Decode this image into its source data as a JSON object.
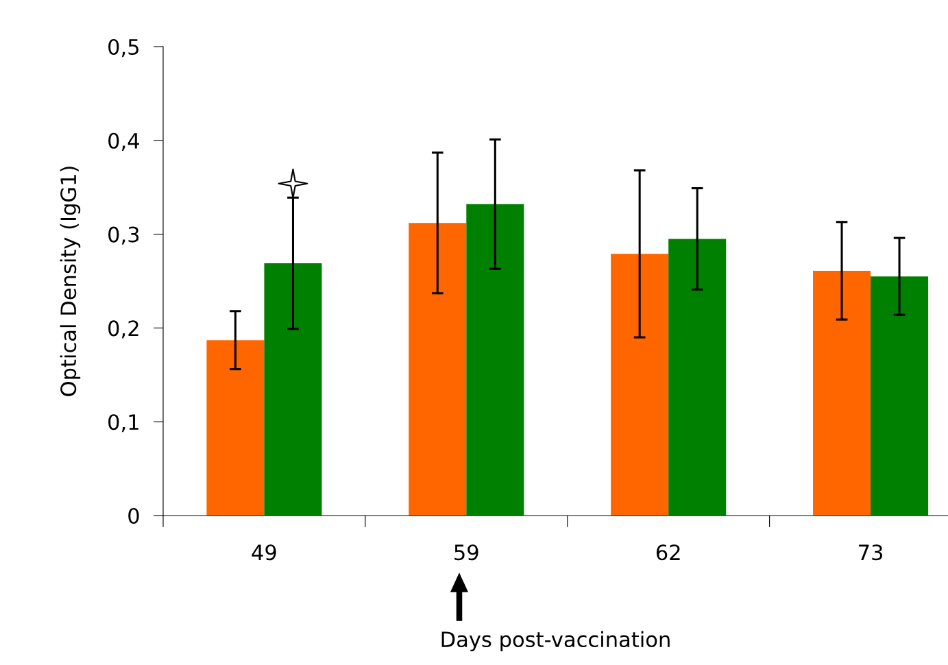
{
  "chart_data": {
    "type": "bar",
    "xlabel": "Days post-vaccination",
    "ylabel": "Optical Density (IgG1)",
    "categories": [
      "49",
      "59",
      "62",
      "73"
    ],
    "series": [
      {
        "color": "#ff6600",
        "values": [
          0.187,
          0.312,
          0.279,
          0.261
        ],
        "errors": [
          0.031,
          0.075,
          0.089,
          0.052
        ]
      },
      {
        "color": "#008000",
        "values": [
          0.269,
          0.332,
          0.295,
          0.255
        ],
        "errors": [
          0.07,
          0.069,
          0.054,
          0.041
        ]
      },
      {
        "type": "scatter",
        "marker": "star",
        "color": "#ffffff",
        "x": [
          "49"
        ],
        "values": [
          0.354
        ]
      }
    ],
    "ylim": [
      0,
      0.5
    ],
    "yticks": [
      0,
      {
        "value": 0.1,
        "label": "0,1"
      },
      {
        "value": 0.2,
        "label": "0,2"
      },
      {
        "value": 0.3,
        "label": "0,3"
      },
      {
        "value": 0.4,
        "label": "0,4"
      },
      {
        "value": 0.5,
        "label": "0,5"
      }
    ],
    "grid": false,
    "legend": false
  }
}
